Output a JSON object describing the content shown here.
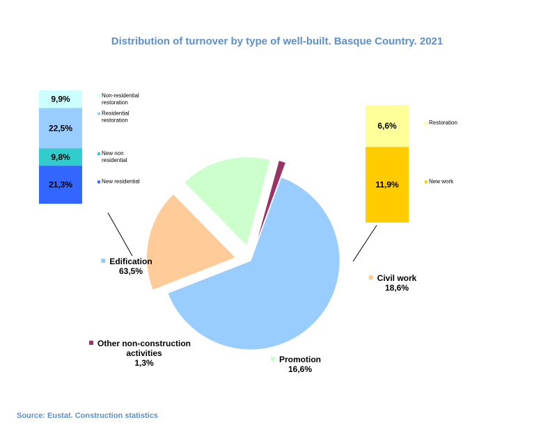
{
  "chart_data": {
    "type": "pie",
    "title": "Distribution of turnover by type of well-built. Basque Country. 2021",
    "slices": [
      {
        "label": "Edification",
        "value_label": "63,5%",
        "value": 63.5,
        "color": "#99ccff",
        "exploded": false
      },
      {
        "label": "Civil work",
        "value_label": "18,6%",
        "value": 18.6,
        "color": "#ffcc99",
        "exploded": true
      },
      {
        "label": "Promotion",
        "value_label": "16,6%",
        "value": 16.6,
        "color": "#ccffcc",
        "exploded": true
      },
      {
        "label": "Other non-construction activities",
        "label_lines": [
          "Other non-construction",
          "activities"
        ],
        "value_label": "1,3%",
        "value": 1.3,
        "color": "#993366",
        "exploded": true
      }
    ],
    "breakdowns": [
      {
        "parent": "Edification",
        "type": "stacked-bar",
        "segments": [
          {
            "label": "Non-residential restoration",
            "label_lines": [
              "Non-residential",
              "restoration"
            ],
            "value_label": "9,9%",
            "value": 9.9,
            "color": "#ccffff"
          },
          {
            "label": "Residential restoration",
            "label_lines": [
              "Residential",
              "restoration"
            ],
            "value_label": "22,5%",
            "value": 22.5,
            "color": "#99ccff"
          },
          {
            "label": "New non residential",
            "label_lines": [
              "New non",
              "residential"
            ],
            "value_label": "9,8%",
            "value": 9.8,
            "color": "#33cccc"
          },
          {
            "label": "New residential",
            "label_lines": [
              "New residential"
            ],
            "value_label": "21,3%",
            "value": 21.3,
            "color": "#3366ff"
          }
        ]
      },
      {
        "parent": "Civil work",
        "type": "stacked-bar",
        "segments": [
          {
            "label": "Restoration",
            "label_lines": [
              "Restoration"
            ],
            "value_label": "6,6%",
            "value": 6.6,
            "color": "#ffff99"
          },
          {
            "label": "New work",
            "label_lines": [
              "New work"
            ],
            "value_label": "11,9%",
            "value": 11.9,
            "color": "#ffcc00"
          }
        ]
      }
    ]
  },
  "source": "Source: Eustat. Construction statistics",
  "colors": {
    "title": "#5b8fcf",
    "source": "#5b8fcf",
    "leader_line": "#000000"
  }
}
